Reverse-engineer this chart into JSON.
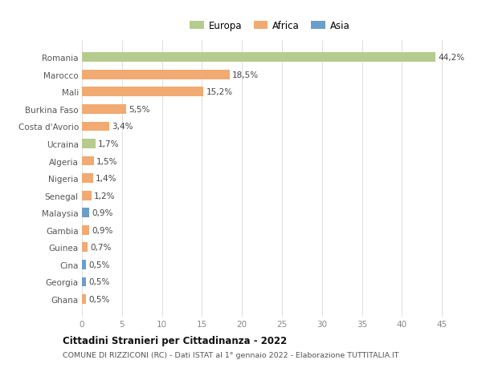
{
  "countries": [
    "Romania",
    "Marocco",
    "Mali",
    "Burkina Faso",
    "Costa d'Avorio",
    "Ucraina",
    "Algeria",
    "Nigeria",
    "Senegal",
    "Malaysia",
    "Gambia",
    "Guinea",
    "Cina",
    "Georgia",
    "Ghana"
  ],
  "values": [
    44.2,
    18.5,
    15.2,
    5.5,
    3.4,
    1.7,
    1.5,
    1.4,
    1.2,
    0.9,
    0.9,
    0.7,
    0.5,
    0.5,
    0.5
  ],
  "labels": [
    "44,2%",
    "18,5%",
    "15,2%",
    "5,5%",
    "3,4%",
    "1,7%",
    "1,5%",
    "1,4%",
    "1,2%",
    "0,9%",
    "0,9%",
    "0,7%",
    "0,5%",
    "0,5%",
    "0,5%"
  ],
  "continents": [
    "Europa",
    "Africa",
    "Africa",
    "Africa",
    "Africa",
    "Europa",
    "Africa",
    "Africa",
    "Africa",
    "Asia",
    "Africa",
    "Africa",
    "Asia",
    "Asia",
    "Africa"
  ],
  "colors": {
    "Europa": "#b5cc8e",
    "Africa": "#f0aa72",
    "Asia": "#6b9ec9"
  },
  "title": "Cittadini Stranieri per Cittadinanza - 2022",
  "subtitle": "COMUNE DI RIZZICONI (RC) - Dati ISTAT al 1° gennaio 2022 - Elaborazione TUTTITALIA.IT",
  "xlim": [
    0,
    47
  ],
  "xticks": [
    0,
    5,
    10,
    15,
    20,
    25,
    30,
    35,
    40,
    45
  ],
  "background_color": "#ffffff",
  "grid_color": "#e0e0e0",
  "bar_height": 0.55
}
